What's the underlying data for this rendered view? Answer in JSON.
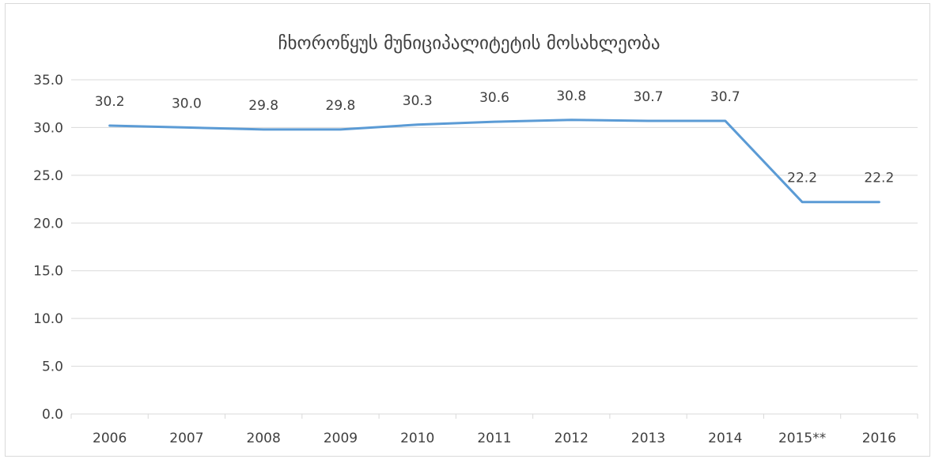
{
  "chart_data": {
    "type": "line",
    "title": "ჩხოროწყუს მუნიციპალიტეტის მოსახლეობა",
    "xlabel": "",
    "ylabel": "",
    "categories": [
      "2006",
      "2007",
      "2008",
      "2009",
      "2010",
      "2011",
      "2012",
      "2013",
      "2014",
      "2015**",
      "2016"
    ],
    "series": [
      {
        "values": [
          30.2,
          30.0,
          29.8,
          29.8,
          30.3,
          30.6,
          30.8,
          30.7,
          30.7,
          22.2,
          22.2
        ],
        "data_labels": [
          "30.2",
          "30.0",
          "29.8",
          "29.8",
          "30.3",
          "30.6",
          "30.8",
          "30.7",
          "30.7",
          "22.2",
          "22.2"
        ]
      }
    ],
    "ylim": [
      0,
      35
    ],
    "y_ticks": [
      "0.0",
      "5.0",
      "10.0",
      "15.0",
      "20.0",
      "25.0",
      "30.0",
      "35.0"
    ],
    "grid": true,
    "legend": "none",
    "line_color": "#5b9bd5",
    "grid_color": "#d9d9d9",
    "text_color": "#404040"
  }
}
